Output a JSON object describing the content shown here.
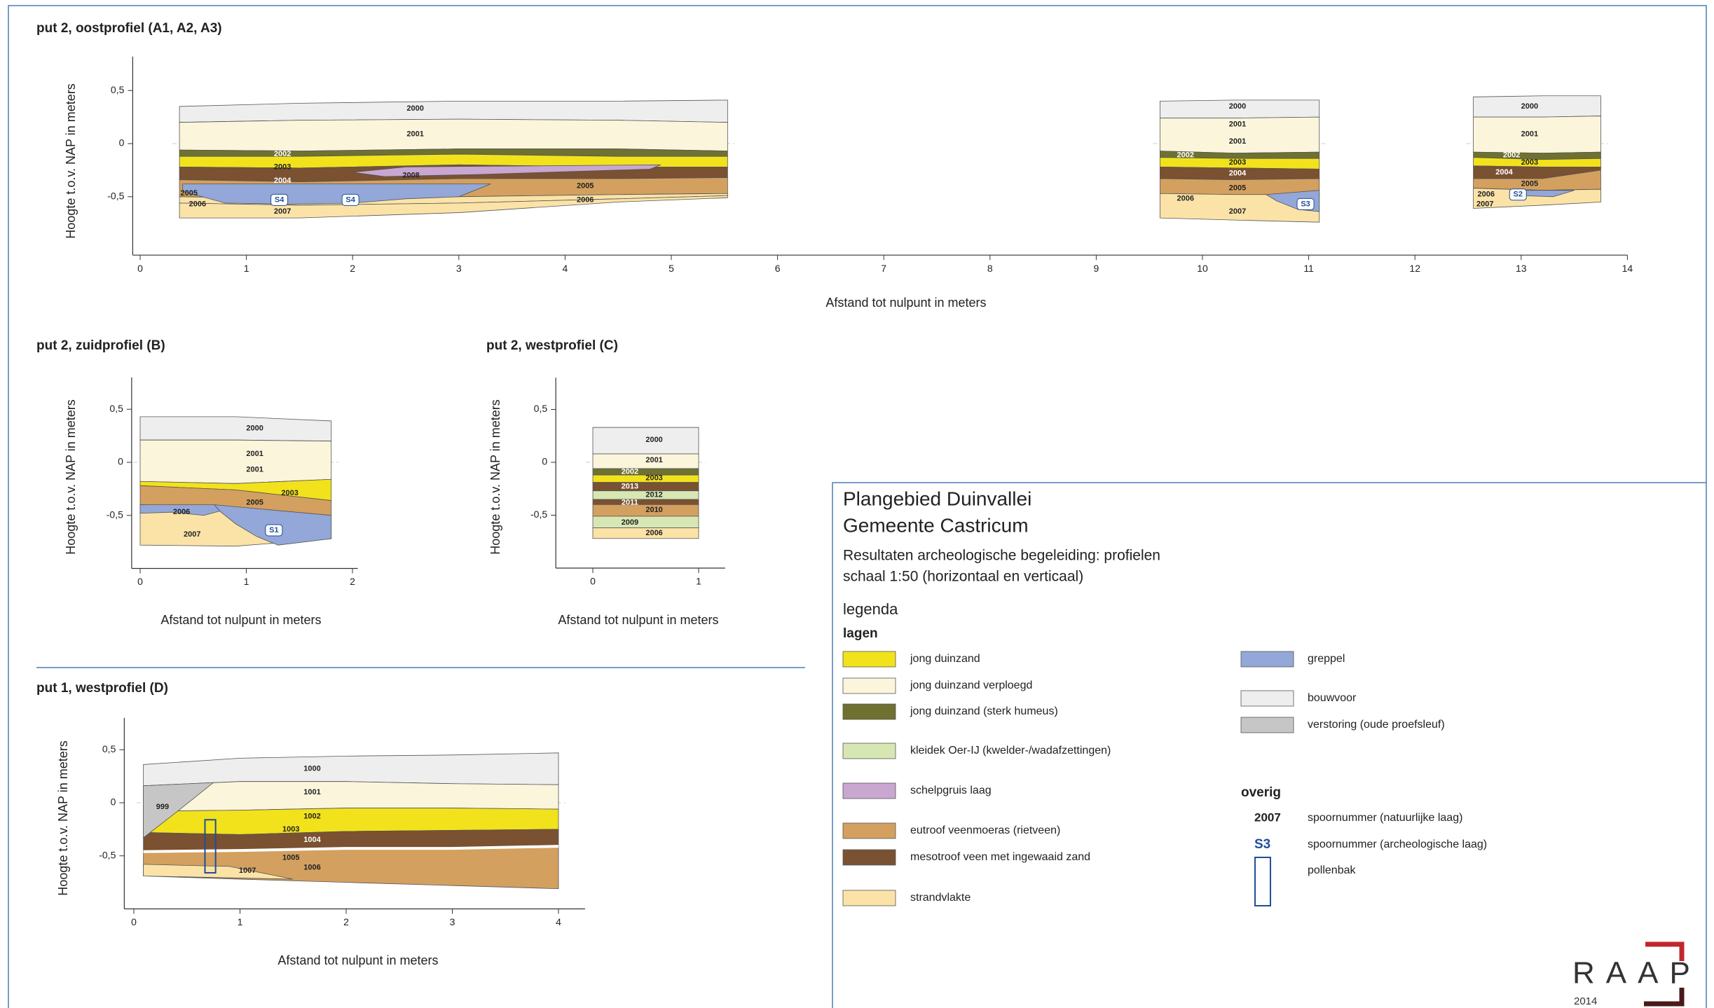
{
  "panels": [
    {
      "title": "put 2, oostprofiel (A1, A2, A3)",
      "y_label": "Hoogte t.o.v. NAP in meters",
      "x_label": "Afstand tot nulpunt in meters",
      "xticks": [
        0,
        1,
        2,
        3,
        4,
        5,
        6,
        7,
        8,
        9,
        10,
        11,
        12,
        13,
        14
      ],
      "yticks": [
        {
          "value": 0.5,
          "label": "0,5"
        },
        0,
        {
          "value": -0.5,
          "label": "-0,5"
        }
      ],
      "profiles": [
        {
          "labels": [
            "2000",
            "2001",
            "2002",
            "2003",
            "2004",
            "2008",
            "2005",
            "2006",
            "S4",
            "S4",
            "2005",
            "2006",
            "2007"
          ]
        },
        {
          "labels": [
            "2000",
            "2001",
            "2001",
            "2002",
            "2003",
            "2004",
            "2005",
            "2006",
            "S3",
            "2007"
          ]
        },
        {
          "labels": [
            "2000",
            "2001",
            "2002",
            "2003",
            "2004",
            "2005",
            "2006",
            "S2",
            "2007"
          ]
        }
      ]
    },
    {
      "title": "put 2, zuidprofiel (B)",
      "y_label": "Hoogte t.o.v. NAP in meters",
      "x_label": "Afstand tot nulpunt in meters",
      "xticks": [
        0,
        1,
        2
      ],
      "yticks": [
        {
          "value": 0.5,
          "label": "0,5"
        },
        0,
        {
          "value": -0.5,
          "label": "-0,5"
        }
      ],
      "profiles": [
        {
          "labels": [
            "2000",
            "2001",
            "2001",
            "2003",
            "2005",
            "2006",
            "S1",
            "2007"
          ]
        }
      ]
    },
    {
      "title": "put 2, westprofiel (C)",
      "y_label": "Hoogte t.o.v. NAP in meters",
      "x_label": "Afstand tot nulpunt in meters",
      "xticks": [
        0,
        1
      ],
      "yticks": [
        {
          "value": 0.5,
          "label": "0,5"
        },
        0,
        {
          "value": -0.5,
          "label": "-0,5"
        }
      ],
      "profiles": [
        {
          "labels": [
            "2000",
            "2001",
            "2002",
            "2003",
            "2013",
            "2012",
            "2011",
            "2010",
            "2009",
            "2006"
          ]
        }
      ]
    },
    {
      "title": "put 1, westprofiel (D)",
      "y_label": "Hoogte t.o.v. NAP in meters",
      "x_label": "Afstand tot nulpunt in meters",
      "xticks": [
        0,
        1,
        2,
        3,
        4
      ],
      "yticks": [
        {
          "value": 0.5,
          "label": "0,5"
        },
        0,
        {
          "value": -0.5,
          "label": "-0,5"
        }
      ],
      "profiles": [
        {
          "labels": [
            "1000",
            "1001",
            "1002",
            "1003",
            "1004",
            "1005",
            "1006",
            "1007",
            "999"
          ]
        }
      ]
    }
  ],
  "legend": {
    "title": "Plangebied Duinvallei",
    "subtitle": "Gemeente Castricum",
    "description": "Resultaten archeologische begeleiding: profielen",
    "scale": "schaal 1:50 (horizontaal en verticaal)",
    "heading": "legenda",
    "layers_heading": "lagen",
    "layers": [
      "jong duinzand",
      "jong duinzand verploegd",
      "jong duinzand (sterk humeus)",
      "kleidek Oer-IJ (kwelder-/wadafzettingen)",
      "schelpgruis laag",
      "eutroof veenmoeras (rietveen)",
      "mesotroof veen met ingewaaid zand",
      "strandvlakte"
    ],
    "layers_right": [
      "greppel",
      "bouwvoor",
      "verstoring (oude proefsleuf)"
    ],
    "other_heading": "overig",
    "other": [
      {
        "symbol": "2007",
        "label": "spoornummer (natuurlijke laag)"
      },
      {
        "symbol": "S3",
        "label": "spoornummer (archeologische laag)"
      },
      {
        "label": "pollenbak"
      }
    ]
  },
  "logo": {
    "name": "RAAP",
    "year": "2014"
  }
}
